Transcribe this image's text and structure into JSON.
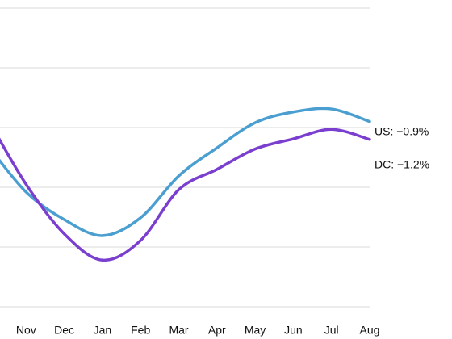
{
  "chart_data": {
    "type": "line",
    "categories": [
      null,
      "Nov",
      "Dec",
      "Jan",
      "Feb",
      "Mar",
      "Apr",
      "May",
      "Jun",
      "Jul",
      "Aug"
    ],
    "series": [
      {
        "label": "US: −0.9%",
        "color": "#4a9fd0",
        "values": [
          -1.3,
          -2.08,
          -2.54,
          -2.81,
          -2.51,
          -1.81,
          -1.34,
          -0.92,
          -0.74,
          -0.69,
          -0.9
        ]
      },
      {
        "label": "DC: −1.2%",
        "color": "#7b3fd0",
        "values": [
          -0.86,
          -1.95,
          -2.78,
          -3.22,
          -2.89,
          -2.04,
          -1.7,
          -1.36,
          -1.19,
          -1.03,
          -1.2
        ]
      }
    ],
    "ylim": [
      -4,
      1
    ],
    "yticks": [
      -4,
      -3,
      -2,
      -1,
      0,
      1
    ],
    "grid": true
  }
}
